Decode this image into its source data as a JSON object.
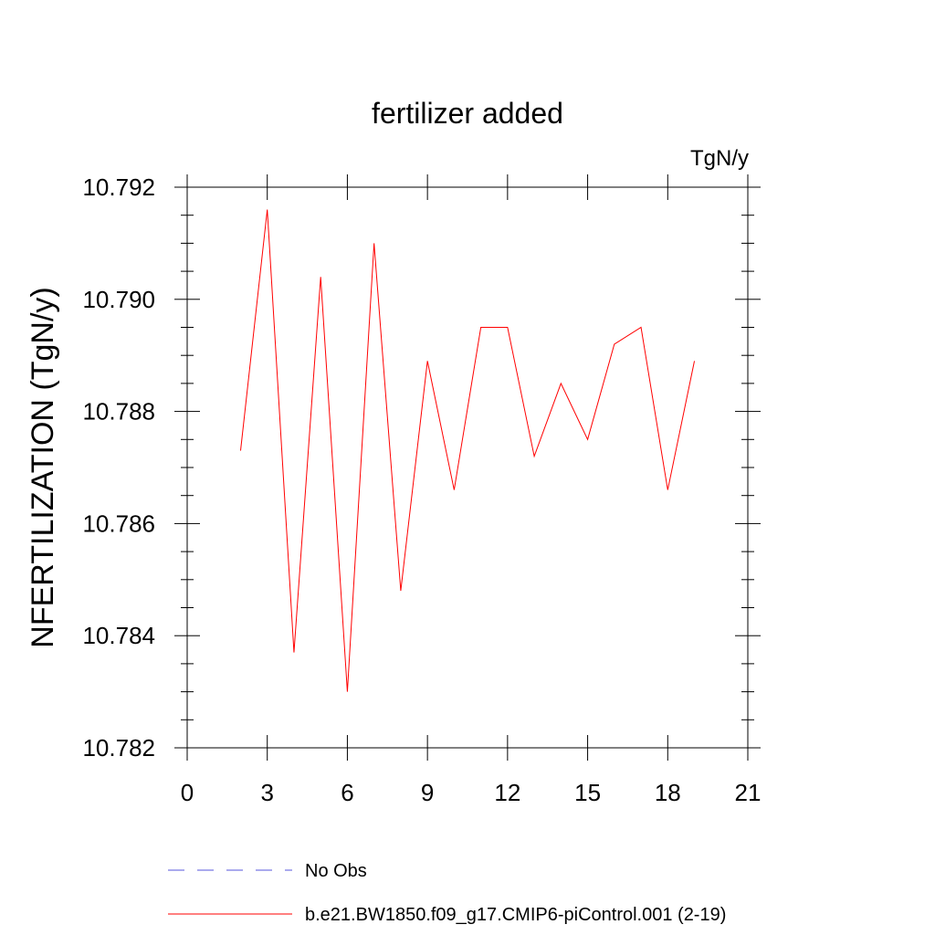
{
  "chart_data": {
    "type": "line",
    "title": "fertilizer added",
    "units_label": "TgN/y",
    "ylabel": "NFERTILIZATION  (TgN/y)",
    "xlabel": "",
    "xlim": [
      0,
      21
    ],
    "ylim": [
      10.782,
      10.792
    ],
    "x_ticks": [
      0,
      3,
      6,
      9,
      12,
      15,
      18,
      21
    ],
    "x_tick_labels": [
      "0",
      "3",
      "6",
      "9",
      "12",
      "15",
      "18",
      "21"
    ],
    "y_ticks": [
      10.782,
      10.784,
      10.786,
      10.788,
      10.79,
      10.792
    ],
    "y_tick_labels": [
      "10.782",
      "10.784",
      "10.786",
      "10.788",
      "10.790",
      "10.792"
    ],
    "grid": false,
    "legend_position": "bottom",
    "series": [
      {
        "name": "No Obs",
        "color": "#5555dd",
        "dashed": true,
        "x": [],
        "y": []
      },
      {
        "name": "b.e21.BW1850.f09_g17.CMIP6-piControl.001 (2-19)",
        "color": "#ff0000",
        "dashed": false,
        "x": [
          2,
          3,
          4,
          5,
          6,
          7,
          8,
          9,
          10,
          11,
          12,
          13,
          14,
          15,
          16,
          17,
          18,
          19
        ],
        "y": [
          10.7873,
          10.7916,
          10.7837,
          10.7904,
          10.783,
          10.791,
          10.7848,
          10.7889,
          10.7866,
          10.7895,
          10.7895,
          10.7872,
          10.7885,
          10.7875,
          10.7892,
          10.7895,
          10.7866,
          10.7889
        ]
      }
    ]
  }
}
